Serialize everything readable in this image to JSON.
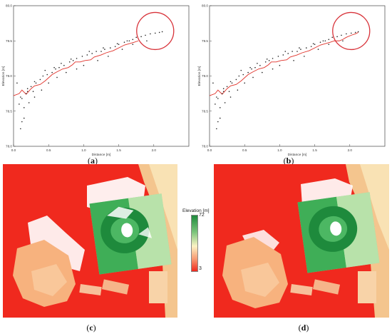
{
  "captions": {
    "a": "a",
    "b": "b",
    "c": "c",
    "d": "d"
  },
  "colors": {
    "profile_line": "#e0322a",
    "points": "#222222",
    "highlight_circle": "#d8333a",
    "map_background": "#f0291e",
    "map_high": "#1e8a3c",
    "map_mid": "#fbf3c4",
    "map_low": "#f0291e"
  },
  "legend": {
    "title": "Elevation [m]",
    "max": "72",
    "min": "3"
  },
  "chart_data": [
    {
      "panel": "a",
      "type": "scatter",
      "xlabel": "Distance [m]",
      "ylabel": "Elevation [m]",
      "xlim": [
        0,
        2.5
      ],
      "ylim": [
        78.0,
        80.0
      ],
      "xticks": [
        "0.0",
        "0.5",
        "1.0",
        "1.5",
        "2.0"
      ],
      "yticks": [
        "78.0",
        "78.5",
        "79.0",
        "79.5",
        "80.0"
      ],
      "series": [
        {
          "kind": "line",
          "x": [
            0.0,
            0.08,
            0.12,
            0.18,
            0.25,
            0.3,
            0.38,
            0.45,
            0.55,
            0.62,
            0.7,
            0.78,
            0.84,
            0.88,
            0.95,
            1.02,
            1.1,
            1.15,
            1.25,
            1.32,
            1.42,
            1.5,
            1.58,
            1.65,
            1.72,
            1.78
          ],
          "y": [
            78.72,
            78.75,
            78.8,
            78.74,
            78.82,
            78.86,
            78.88,
            78.93,
            79.02,
            79.06,
            79.1,
            79.12,
            79.16,
            79.2,
            79.2,
            79.22,
            79.23,
            79.27,
            79.3,
            79.33,
            79.36,
            79.4,
            79.44,
            79.46,
            79.48,
            79.5
          ]
        },
        {
          "kind": "points",
          "x": [
            0.08,
            0.1,
            0.12,
            0.15,
            0.18,
            0.2,
            0.25,
            0.28,
            0.32,
            0.38,
            0.42,
            0.48,
            0.55,
            0.6,
            0.65,
            0.72,
            0.8,
            0.85,
            0.9,
            0.98,
            1.05,
            1.12,
            1.18,
            1.25,
            1.3,
            1.38,
            1.45,
            1.5,
            1.58,
            1.62,
            1.7,
            1.75,
            1.82,
            1.88,
            1.95,
            2.02,
            2.08,
            2.12,
            0.15,
            0.22,
            0.1,
            0.3,
            0.4,
            0.5,
            0.62,
            0.75,
            0.9,
            1.0,
            1.2,
            1.35,
            1.55,
            1.7,
            1.9,
            0.12,
            0.2,
            0.05,
            0.3,
            0.45,
            0.58,
            0.68,
            0.82,
            1.08,
            1.28,
            1.48,
            1.65
          ],
          "y": [
            78.6,
            78.7,
            78.35,
            78.4,
            78.75,
            78.82,
            78.85,
            78.78,
            78.9,
            78.95,
            79.0,
            79.02,
            79.05,
            79.1,
            79.12,
            79.15,
            79.2,
            79.22,
            79.25,
            79.28,
            79.3,
            79.32,
            79.35,
            79.35,
            79.38,
            79.4,
            79.42,
            79.45,
            79.48,
            79.5,
            79.52,
            79.55,
            79.56,
            79.58,
            79.6,
            79.61,
            79.62,
            79.63,
            78.55,
            78.62,
            78.25,
            78.7,
            78.8,
            78.9,
            78.98,
            79.05,
            79.1,
            79.15,
            79.22,
            79.28,
            79.38,
            79.45,
            79.5,
            78.68,
            78.78,
            78.9,
            78.92,
            79.08,
            79.12,
            79.18,
            79.24,
            79.35,
            79.4,
            79.46,
            79.5
          ]
        }
      ],
      "annotation": "highlight-circle"
    },
    {
      "panel": "b",
      "type": "scatter",
      "xlabel": "Distance [m]",
      "ylabel": "Elevation [m]",
      "xlim": [
        0,
        2.5
      ],
      "ylim": [
        78.0,
        80.0
      ],
      "xticks": [
        "0.0",
        "0.5",
        "1.0",
        "1.5",
        "2.0"
      ],
      "yticks": [
        "78.0",
        "78.5",
        "79.0",
        "79.5",
        "80.0"
      ],
      "series": [
        {
          "kind": "line",
          "x": [
            0.0,
            0.08,
            0.12,
            0.18,
            0.25,
            0.3,
            0.38,
            0.45,
            0.55,
            0.62,
            0.7,
            0.78,
            0.84,
            0.88,
            0.95,
            1.02,
            1.1,
            1.15,
            1.25,
            1.32,
            1.42,
            1.5,
            1.58,
            1.65,
            1.72,
            1.78,
            1.85,
            1.9,
            1.95,
            2.02,
            2.08,
            2.12
          ],
          "y": [
            78.72,
            78.75,
            78.8,
            78.74,
            78.82,
            78.86,
            78.88,
            78.93,
            79.02,
            79.06,
            79.1,
            79.12,
            79.16,
            79.2,
            79.2,
            79.22,
            79.23,
            79.27,
            79.3,
            79.33,
            79.36,
            79.4,
            79.44,
            79.46,
            79.48,
            79.5,
            79.5,
            79.52,
            79.55,
            79.58,
            79.6,
            79.62
          ]
        },
        {
          "kind": "points",
          "x": [
            0.08,
            0.1,
            0.12,
            0.15,
            0.18,
            0.2,
            0.25,
            0.28,
            0.32,
            0.38,
            0.42,
            0.48,
            0.55,
            0.6,
            0.65,
            0.72,
            0.8,
            0.85,
            0.9,
            0.98,
            1.05,
            1.12,
            1.18,
            1.25,
            1.3,
            1.38,
            1.45,
            1.5,
            1.58,
            1.62,
            1.7,
            1.75,
            1.82,
            1.88,
            1.95,
            2.02,
            2.08,
            2.12,
            0.15,
            0.22,
            0.1,
            0.3,
            0.4,
            0.5,
            0.62,
            0.75,
            0.9,
            1.0,
            1.2,
            1.35,
            1.55,
            1.7,
            1.9,
            0.12,
            0.2,
            0.05,
            0.3,
            0.45,
            0.58,
            0.68,
            0.82,
            1.08,
            1.28,
            1.48,
            1.65
          ],
          "y": [
            78.6,
            78.7,
            78.35,
            78.4,
            78.75,
            78.82,
            78.85,
            78.78,
            78.9,
            78.95,
            79.0,
            79.02,
            79.05,
            79.1,
            79.12,
            79.15,
            79.2,
            79.22,
            79.25,
            79.28,
            79.3,
            79.32,
            79.35,
            79.35,
            79.38,
            79.4,
            79.42,
            79.45,
            79.48,
            79.5,
            79.52,
            79.55,
            79.56,
            79.58,
            79.6,
            79.61,
            79.62,
            79.63,
            78.55,
            78.62,
            78.25,
            78.7,
            78.8,
            78.9,
            78.98,
            79.05,
            79.1,
            79.15,
            79.22,
            79.28,
            79.38,
            79.45,
            79.5,
            78.68,
            78.78,
            78.9,
            78.92,
            79.08,
            79.12,
            79.18,
            79.24,
            79.35,
            79.4,
            79.46,
            79.5
          ]
        }
      ],
      "annotation": "highlight-circle"
    }
  ]
}
